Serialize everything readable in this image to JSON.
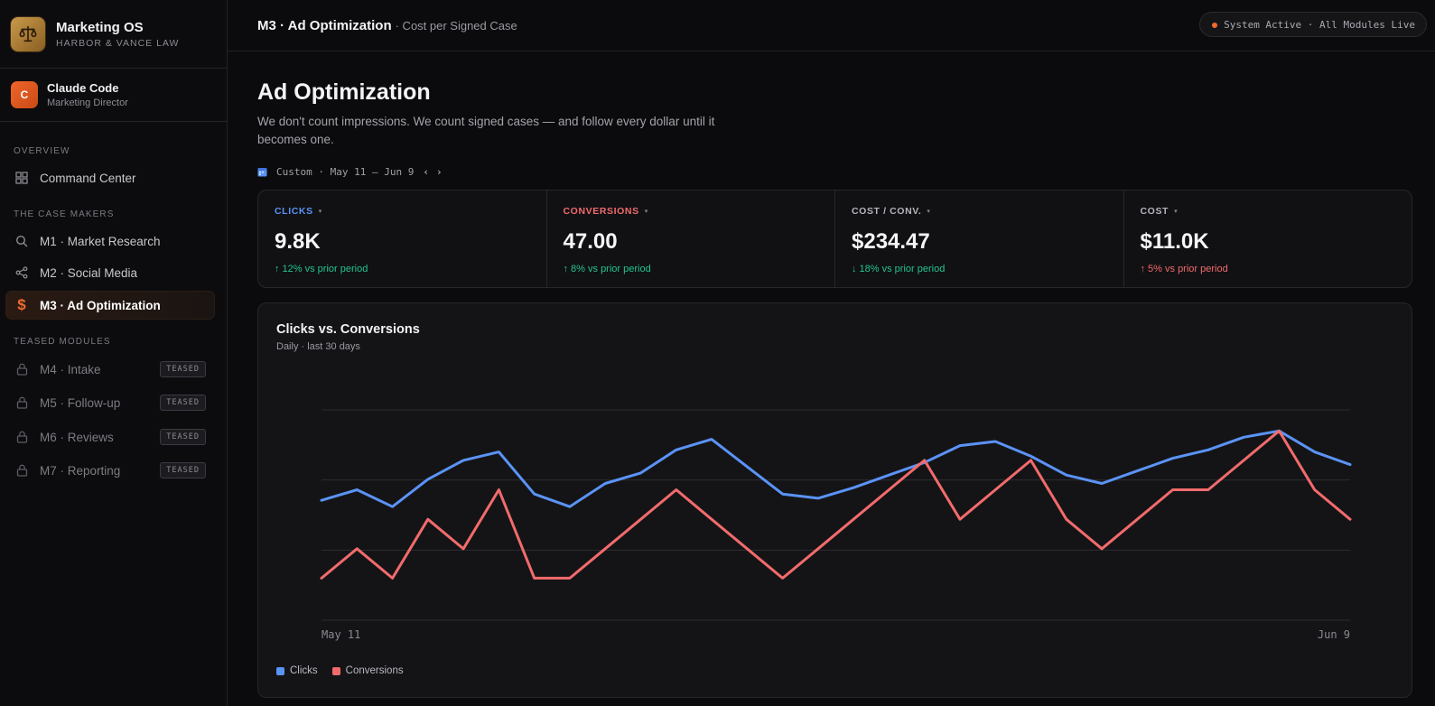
{
  "brand": {
    "title": "Marketing OS",
    "subtitle": "HARBOR & VANCE LAW",
    "logo_icon": "scales-icon"
  },
  "user": {
    "initial": "C",
    "name": "Claude Code",
    "role": "Marketing Director"
  },
  "sidebar": {
    "sections": [
      {
        "label": "OVERVIEW"
      },
      {
        "label": "THE CASE MAKERS"
      },
      {
        "label": "TEASED MODULES"
      }
    ],
    "items": [
      {
        "label": "Command Center",
        "icon": "grid-icon"
      },
      {
        "label": "M1 · Market Research",
        "icon": "search-icon"
      },
      {
        "label": "M2 · Social Media",
        "icon": "share-icon"
      },
      {
        "label": "M3 · Ad Optimization",
        "icon": "dollar-icon",
        "active": true
      },
      {
        "label": "M4 · Intake",
        "icon": "lock-icon",
        "badge": "TEASED"
      },
      {
        "label": "M5 · Follow-up",
        "icon": "lock-icon",
        "badge": "TEASED"
      },
      {
        "label": "M6 · Reviews",
        "icon": "lock-icon",
        "badge": "TEASED"
      },
      {
        "label": "M7 · Reporting",
        "icon": "lock-icon",
        "badge": "TEASED"
      }
    ]
  },
  "topbar": {
    "title": "M3 · Ad Optimization",
    "subtitle": "· Cost per Signed Case",
    "status": "System Active · All Modules Live"
  },
  "page": {
    "title": "Ad Optimization",
    "description": "We don't count impressions. We count signed cases — and follow every dollar until it becomes one.",
    "date_range": "Custom · May 11 – Jun 9",
    "prev": "‹",
    "next": "›"
  },
  "kpis": [
    {
      "label": "CLICKS",
      "value": "9.8K",
      "delta": "↑ 12% vs prior period",
      "label_color": "#5b93f5",
      "delta_color": "#22c58b"
    },
    {
      "label": "CONVERSIONS",
      "value": "47.00",
      "delta": "↑ 8% vs prior period",
      "label_color": "#f26b6b",
      "delta_color": "#22c58b"
    },
    {
      "label": "COST / CONV.",
      "value": "$234.47",
      "delta": "↓ 18% vs prior period",
      "label_color": "#b4b4bc",
      "delta_color": "#22c58b"
    },
    {
      "label": "COST",
      "value": "$11.0K",
      "delta": "↑ 5% vs prior period",
      "label_color": "#b4b4bc",
      "delta_color": "#f26b6b"
    }
  ],
  "chart": {
    "title": "Clicks vs. Conversions",
    "subtitle": "Daily · last 30 days"
  },
  "chart_data": {
    "type": "line",
    "title": "Clicks vs. Conversions",
    "subtitle": "Daily · last 30 days",
    "x_labels_shown": [
      "May 11",
      "Jun 9"
    ],
    "x": [
      "May 11",
      "May 12",
      "May 13",
      "May 14",
      "May 15",
      "May 16",
      "May 17",
      "May 18",
      "May 19",
      "May 20",
      "May 21",
      "May 22",
      "May 23",
      "May 24",
      "May 25",
      "May 26",
      "May 27",
      "May 28",
      "May 29",
      "May 30",
      "May 31",
      "Jun 1",
      "Jun 2",
      "Jun 3",
      "Jun 4",
      "Jun 5",
      "Jun 6",
      "Jun 7",
      "Jun 8",
      "Jun 9"
    ],
    "grid": true,
    "legend_position": "bottom-left",
    "y_scale_max": 1.0,
    "series": [
      {
        "name": "Clicks",
        "color": "#5b93f5",
        "values": [
          0.57,
          0.62,
          0.54,
          0.67,
          0.76,
          0.8,
          0.6,
          0.54,
          0.65,
          0.7,
          0.81,
          0.86,
          0.73,
          0.6,
          0.58,
          0.63,
          0.69,
          0.75,
          0.83,
          0.85,
          0.78,
          0.69,
          0.65,
          0.71,
          0.77,
          0.81,
          0.87,
          0.9,
          0.8,
          0.74
        ]
      },
      {
        "name": "Conversions",
        "color": "#f26b6b",
        "values": [
          0.2,
          0.34,
          0.2,
          0.48,
          0.34,
          0.62,
          0.2,
          0.2,
          0.34,
          0.48,
          0.62,
          0.48,
          0.34,
          0.2,
          0.34,
          0.48,
          0.62,
          0.76,
          0.48,
          0.62,
          0.76,
          0.48,
          0.34,
          0.48,
          0.62,
          0.62,
          0.76,
          0.9,
          0.62,
          0.48
        ]
      }
    ]
  }
}
